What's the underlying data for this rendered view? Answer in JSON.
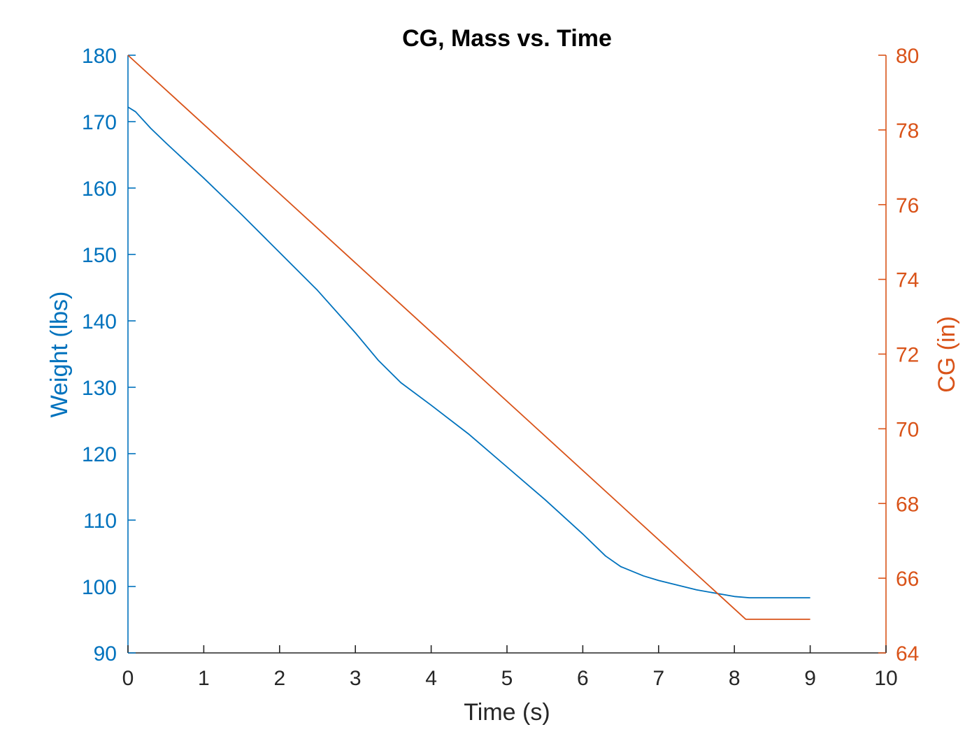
{
  "chart_data": {
    "type": "line",
    "title": "CG, Mass vs. Time",
    "xlabel": "Time (s)",
    "ylabel_left": "Weight (lbs)",
    "ylabel_right": "CG (in)",
    "xlim": [
      0,
      10
    ],
    "ylim_left": [
      90,
      180
    ],
    "ylim_right": [
      64,
      80
    ],
    "xticks": [
      "0",
      "1",
      "2",
      "3",
      "4",
      "5",
      "6",
      "7",
      "8",
      "9",
      "10"
    ],
    "yticks_left": [
      "90",
      "100",
      "110",
      "120",
      "130",
      "140",
      "150",
      "160",
      "170",
      "180"
    ],
    "yticks_right": [
      "64",
      "66",
      "68",
      "70",
      "72",
      "74",
      "76",
      "78",
      "80"
    ],
    "grid": false,
    "colors": {
      "left": "#0072BD",
      "right": "#D95319",
      "axes": "#262626"
    },
    "series": [
      {
        "axis": "left",
        "color": "#0072BD",
        "x": [
          0,
          0.1,
          0.3,
          0.5,
          1.0,
          1.5,
          2.0,
          2.5,
          3.0,
          3.3,
          3.6,
          4.0,
          4.5,
          5.0,
          5.5,
          6.0,
          6.3,
          6.5,
          6.8,
          7.0,
          7.5,
          8.0,
          8.2,
          8.5,
          9.0
        ],
        "y": [
          172.2,
          171.5,
          169.0,
          166.8,
          161.5,
          156.0,
          150.3,
          144.6,
          138.2,
          134.1,
          130.7,
          127.3,
          122.9,
          118.0,
          113.1,
          107.9,
          104.6,
          103.0,
          101.6,
          100.9,
          99.5,
          98.5,
          98.3,
          98.3,
          98.3
        ]
      },
      {
        "axis": "right",
        "color": "#D95319",
        "x": [
          0,
          8.15,
          9.0
        ],
        "y": [
          80.0,
          64.9,
          64.9
        ]
      }
    ]
  }
}
